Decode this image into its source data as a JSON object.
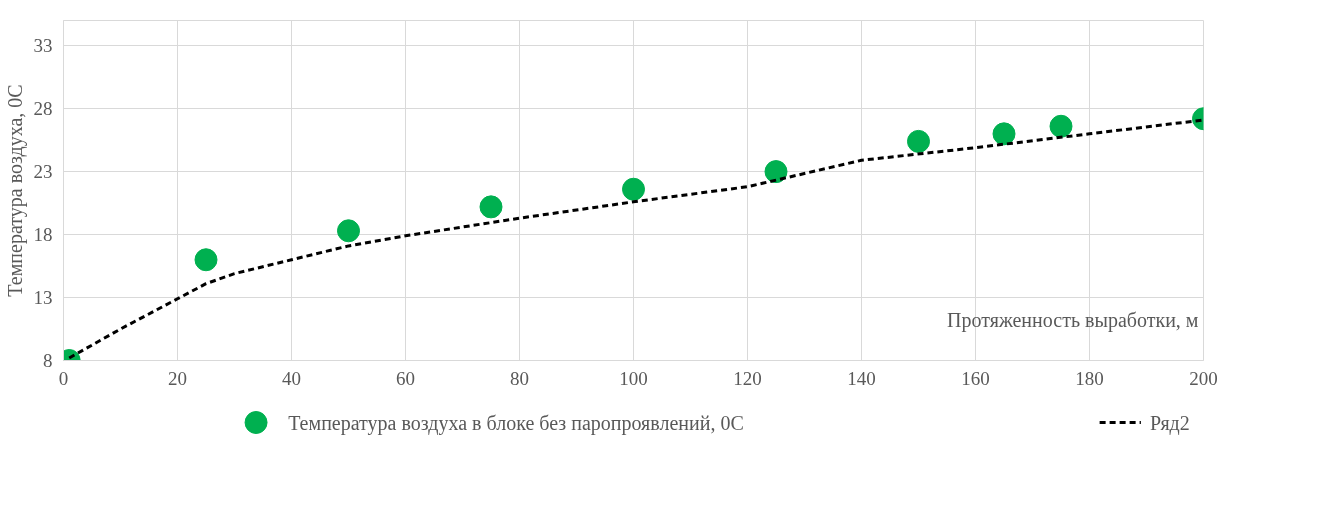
{
  "chart_data": {
    "type": "scatter",
    "xlabel": "Протяженность выработки, м",
    "ylabel": "Температура воздуха, 0С",
    "xlim": [
      0,
      200
    ],
    "xticks": [
      0,
      20,
      40,
      60,
      80,
      100,
      120,
      140,
      160,
      180,
      200
    ],
    "ylim": [
      8,
      35
    ],
    "yticks": [
      8,
      13,
      18,
      23,
      28,
      33
    ],
    "grid": true,
    "legend": "bottom",
    "series": [
      {
        "name": "Температура воздуха в блоке без паропроявлений, 0С",
        "marker": "circle",
        "color": "#00b050",
        "x": [
          1,
          25,
          50,
          75,
          100,
          125,
          150,
          165,
          175,
          200
        ],
        "values": [
          8.0,
          16.0,
          18.3,
          20.2,
          21.6,
          23.0,
          25.4,
          26.0,
          26.6,
          27.2
        ]
      },
      {
        "name": "Ряд2",
        "type": "line",
        "line_style": "dashed",
        "color": "#000000",
        "x": [
          1,
          10,
          20,
          25,
          30,
          40,
          50,
          60,
          80,
          100,
          120,
          140,
          160,
          180,
          200
        ],
        "values": [
          8.2,
          10.5,
          12.9,
          14.1,
          14.9,
          16.0,
          17.1,
          17.9,
          19.3,
          20.6,
          21.8,
          23.9,
          24.9,
          26.0,
          27.1
        ]
      }
    ]
  }
}
